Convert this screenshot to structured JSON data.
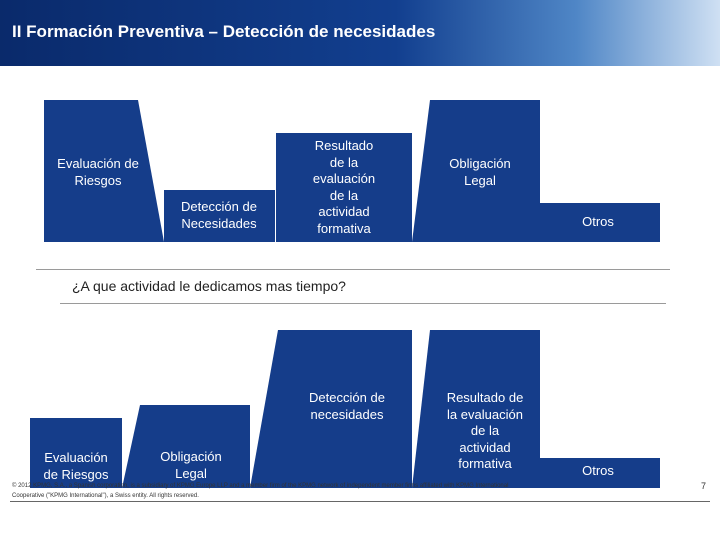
{
  "slide": {
    "title": "II Formación Preventiva  – Detección de necesidades",
    "question": "¿A que actividad  le dedicamos mas tiempo?",
    "footer": "© 2012 KPMG, S.A., a Spanish corporation, is a subsidiary of KPMG Europe LLP and a member firm of the KPMG network of independent member firms affiliated with KPMG International Cooperative (\"KPMG International\"), a Swiss entity. All rights reserved.",
    "page_number": "7"
  },
  "colors": {
    "header_dark": "#0a2a6b",
    "shape_fill": "#153d8a"
  },
  "top_chart": {
    "bars": [
      {
        "label": "Evaluación de\nRiesgos"
      },
      {
        "label": "Detección de\nNecesidades"
      },
      {
        "label": "Resultado\nde la\nevaluación\nde la\nactividad\nformativa"
      },
      {
        "label": "Obligación\nLegal"
      },
      {
        "label": "Otros"
      }
    ]
  },
  "bottom_chart": {
    "bars": [
      {
        "label": "Evaluación\nde Riesgos"
      },
      {
        "label": "Obligación\nLegal"
      },
      {
        "label": "Detección de\nnecesidades"
      },
      {
        "label": "Resultado de\nla evaluación\nde la\nactividad\nformativa"
      },
      {
        "label": "Otros"
      }
    ]
  }
}
